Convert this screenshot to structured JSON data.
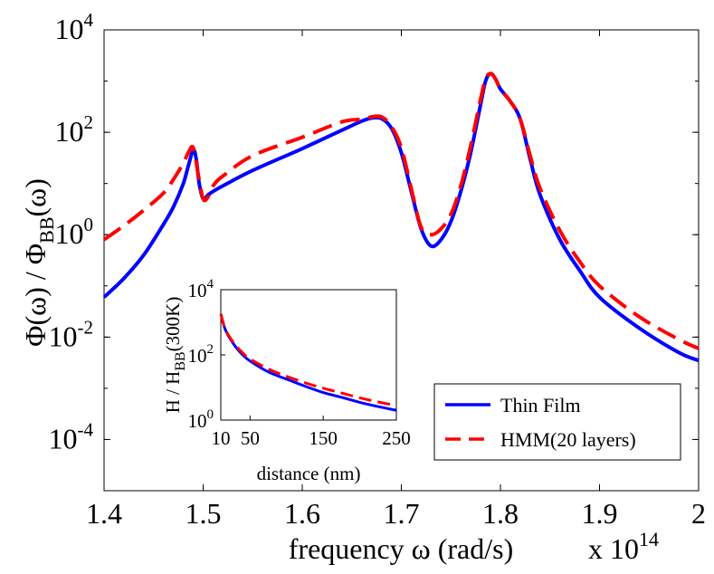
{
  "chart_data": {
    "type": "line",
    "y_scale": "log",
    "x_scale_note": "x 10^14",
    "xlabel": "frequency ω (rad/s)",
    "ylabel": {
      "main": "Φ(ω) / Φ",
      "sub": "BB",
      "tail": "(ω)"
    },
    "x_multiplier": {
      "base": "x 10",
      "exp": "14"
    },
    "xlim": [
      1.4,
      2.0
    ],
    "ylim_exp": [
      -5,
      4
    ],
    "xticks": [
      "1.4",
      "1.5",
      "1.6",
      "1.7",
      "1.8",
      "1.9",
      "2"
    ],
    "yticks": [
      {
        "base": "10",
        "exp": "-4",
        "value_exp": -4
      },
      {
        "base": "10",
        "exp": "-2",
        "value_exp": -2
      },
      {
        "base": "10",
        "exp": "0",
        "value_exp": 0
      },
      {
        "base": "10",
        "exp": "2",
        "value_exp": 2
      },
      {
        "base": "10",
        "exp": "4",
        "value_exp": 4
      }
    ],
    "legend_position": "lower-right",
    "series": [
      {
        "name": "Thin Film",
        "color": "#0000ff",
        "dash": "solid",
        "x": [
          1.4,
          1.42,
          1.44,
          1.46,
          1.47,
          1.48,
          1.485,
          1.49,
          1.493,
          1.496,
          1.5,
          1.505,
          1.51,
          1.52,
          1.55,
          1.6,
          1.64,
          1.66,
          1.67,
          1.68,
          1.69,
          1.7,
          1.71,
          1.72,
          1.73,
          1.74,
          1.75,
          1.76,
          1.77,
          1.78,
          1.785,
          1.79,
          1.795,
          1.8,
          1.81,
          1.82,
          1.83,
          1.84,
          1.86,
          1.88,
          1.9,
          1.94,
          1.98,
          2.0
        ],
        "y": [
          0.06,
          0.14,
          0.4,
          1.6,
          3.5,
          10,
          22,
          45,
          30,
          10,
          5,
          6,
          7,
          9,
          18,
          48,
          110,
          165,
          190,
          185,
          120,
          40,
          7,
          1.3,
          0.6,
          0.8,
          1.8,
          7,
          40,
          350,
          1000,
          1400,
          1100,
          700,
          400,
          180,
          30,
          6,
          0.8,
          0.2,
          0.06,
          0.015,
          0.005,
          0.0035
        ]
      },
      {
        "name": "HMM(20 layers)",
        "color": "#ff0000",
        "dash": "dashed",
        "x": [
          1.4,
          1.42,
          1.44,
          1.46,
          1.47,
          1.48,
          1.485,
          1.49,
          1.495,
          1.5,
          1.505,
          1.51,
          1.52,
          1.55,
          1.6,
          1.64,
          1.66,
          1.67,
          1.68,
          1.69,
          1.7,
          1.71,
          1.72,
          1.73,
          1.74,
          1.75,
          1.76,
          1.77,
          1.78,
          1.785,
          1.79,
          1.795,
          1.8,
          1.81,
          1.82,
          1.83,
          1.84,
          1.86,
          1.88,
          1.9,
          1.94,
          1.98,
          2.0
        ],
        "y": [
          0.8,
          1.5,
          3,
          6.5,
          12,
          25,
          40,
          50,
          15,
          5,
          5.5,
          9,
          14,
          35,
          80,
          160,
          180,
          200,
          200,
          130,
          50,
          8,
          1.4,
          1,
          1.3,
          2.5,
          9,
          55,
          450,
          1100,
          1400,
          1100,
          700,
          400,
          180,
          35,
          8,
          1.2,
          0.3,
          0.1,
          0.025,
          0.009,
          0.006
        ]
      }
    ],
    "inset": {
      "type": "line",
      "y_scale": "log",
      "xlabel": "distance (nm)",
      "ylabel": {
        "main": "H / H",
        "sub": "BB",
        "tail": "(300K)"
      },
      "xlim": [
        10,
        250
      ],
      "xticks": [
        "10",
        "50",
        "150",
        "250"
      ],
      "xtick_values": [
        10,
        50,
        150,
        250
      ],
      "ylim_exp": [
        0,
        4
      ],
      "yticks": [
        {
          "base": "10",
          "exp": "0",
          "value_exp": 0
        },
        {
          "base": "10",
          "exp": "2",
          "value_exp": 2
        },
        {
          "base": "10",
          "exp": "4",
          "value_exp": 4
        }
      ],
      "series": [
        {
          "name": "Thin Film",
          "color": "#0000ff",
          "dash": "solid",
          "x": [
            10,
            15,
            20,
            30,
            40,
            50,
            75,
            100,
            125,
            150,
            175,
            200,
            225,
            250
          ],
          "y": [
            1800,
            700,
            400,
            180,
            100,
            65,
            30,
            18,
            11,
            7,
            5,
            3.5,
            2.6,
            2
          ]
        },
        {
          "name": "HMM(20 layers)",
          "color": "#ff0000",
          "dash": "dashed",
          "x": [
            10,
            15,
            20,
            30,
            40,
            50,
            75,
            100,
            125,
            150,
            175,
            200,
            225,
            250
          ],
          "y": [
            1800,
            720,
            420,
            200,
            115,
            75,
            37,
            22,
            14,
            9.5,
            6.8,
            4.8,
            3.6,
            2.8
          ]
        }
      ]
    }
  }
}
